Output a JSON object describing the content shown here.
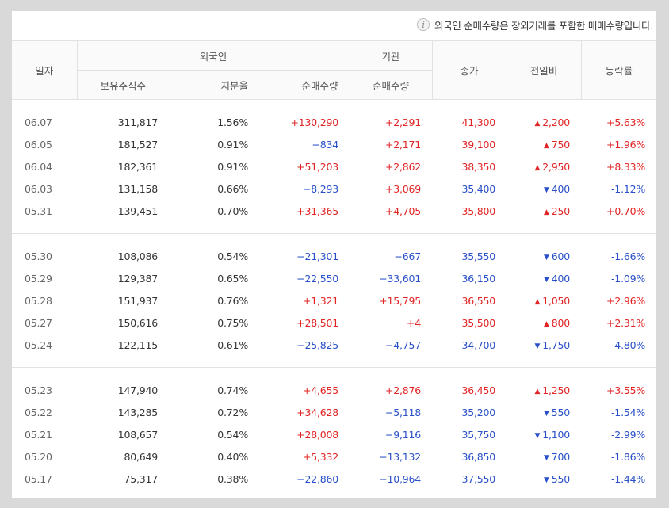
{
  "notice": "외국인 순매수량은 장외거래를 포함한 매매수량입니다.",
  "headers": {
    "date": "일자",
    "foreign": "외국인",
    "institution": "기관",
    "holdings": "보유주식수",
    "share": "지분율",
    "foreign_net": "순매수량",
    "inst_net": "순매수량",
    "close": "종가",
    "change": "전일비",
    "rate": "등락률"
  },
  "groups": [
    [
      {
        "date": "06.07",
        "holdings": "311,817",
        "share": "1.56%",
        "fnet": "+130,290",
        "inet": "+2,291",
        "close": "41,300",
        "dir": "up",
        "change": "2,200",
        "rate": "+5.63%"
      },
      {
        "date": "06.05",
        "holdings": "181,527",
        "share": "0.91%",
        "fnet": "−834",
        "inet": "+2,171",
        "close": "39,100",
        "dir": "up",
        "change": "750",
        "rate": "+1.96%"
      },
      {
        "date": "06.04",
        "holdings": "182,361",
        "share": "0.91%",
        "fnet": "+51,203",
        "inet": "+2,862",
        "close": "38,350",
        "dir": "up",
        "change": "2,950",
        "rate": "+8.33%"
      },
      {
        "date": "06.03",
        "holdings": "131,158",
        "share": "0.66%",
        "fnet": "−8,293",
        "inet": "+3,069",
        "close": "35,400",
        "dir": "down",
        "change": "400",
        "rate": "-1.12%"
      },
      {
        "date": "05.31",
        "holdings": "139,451",
        "share": "0.70%",
        "fnet": "+31,365",
        "inet": "+4,705",
        "close": "35,800",
        "dir": "up",
        "change": "250",
        "rate": "+0.70%"
      }
    ],
    [
      {
        "date": "05.30",
        "holdings": "108,086",
        "share": "0.54%",
        "fnet": "−21,301",
        "inet": "−667",
        "close": "35,550",
        "dir": "down",
        "change": "600",
        "rate": "-1.66%"
      },
      {
        "date": "05.29",
        "holdings": "129,387",
        "share": "0.65%",
        "fnet": "−22,550",
        "inet": "−33,601",
        "close": "36,150",
        "dir": "down",
        "change": "400",
        "rate": "-1.09%"
      },
      {
        "date": "05.28",
        "holdings": "151,937",
        "share": "0.76%",
        "fnet": "+1,321",
        "inet": "+15,795",
        "close": "36,550",
        "dir": "up",
        "change": "1,050",
        "rate": "+2.96%"
      },
      {
        "date": "05.27",
        "holdings": "150,616",
        "share": "0.75%",
        "fnet": "+28,501",
        "inet": "+4",
        "close": "35,500",
        "dir": "up",
        "change": "800",
        "rate": "+2.31%"
      },
      {
        "date": "05.24",
        "holdings": "122,115",
        "share": "0.61%",
        "fnet": "−25,825",
        "inet": "−4,757",
        "close": "34,700",
        "dir": "down",
        "change": "1,750",
        "rate": "-4.80%"
      }
    ],
    [
      {
        "date": "05.23",
        "holdings": "147,940",
        "share": "0.74%",
        "fnet": "+4,655",
        "inet": "+2,876",
        "close": "36,450",
        "dir": "up",
        "change": "1,250",
        "rate": "+3.55%"
      },
      {
        "date": "05.22",
        "holdings": "143,285",
        "share": "0.72%",
        "fnet": "+34,628",
        "inet": "−5,118",
        "close": "35,200",
        "dir": "down",
        "change": "550",
        "rate": "-1.54%"
      },
      {
        "date": "05.21",
        "holdings": "108,657",
        "share": "0.54%",
        "fnet": "+28,008",
        "inet": "−9,116",
        "close": "35,750",
        "dir": "down",
        "change": "1,100",
        "rate": "-2.99%"
      },
      {
        "date": "05.20",
        "holdings": "80,649",
        "share": "0.40%",
        "fnet": "+5,332",
        "inet": "−13,132",
        "close": "36,850",
        "dir": "down",
        "change": "700",
        "rate": "-1.86%"
      },
      {
        "date": "05.17",
        "holdings": "75,317",
        "share": "0.38%",
        "fnet": "−22,860",
        "inet": "−10,964",
        "close": "37,550",
        "dir": "down",
        "change": "550",
        "rate": "-1.44%"
      }
    ]
  ],
  "colors": {
    "up": "#e12424",
    "down": "#2950c8"
  }
}
